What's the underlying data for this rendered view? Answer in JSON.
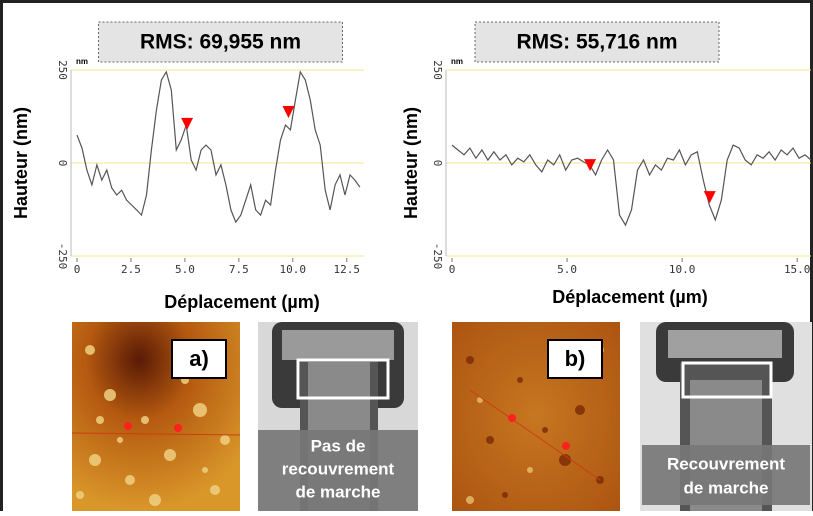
{
  "chart_data": [
    {
      "type": "line",
      "title": "RMS: 69,955 nm",
      "y_unit": "nm",
      "xlabel": "Déplacement (µm)",
      "ylabel": "Hauteur (nm)",
      "xlim": [
        0,
        13.3
      ],
      "ylim": [
        -250,
        250
      ],
      "xticks": [
        0,
        2.5,
        {
          "value": 5,
          "label": "5.0"
        },
        7.5,
        {
          "value": 10,
          "label": "10.0"
        },
        12.5
      ],
      "yticks": [
        -250,
        0,
        250
      ],
      "grid": true,
      "color": "#555555",
      "x": [
        0,
        0.23,
        0.46,
        0.69,
        0.92,
        1.15,
        1.38,
        1.61,
        1.84,
        2.07,
        2.3,
        2.53,
        2.76,
        2.99,
        3.22,
        3.45,
        3.68,
        3.91,
        4.14,
        4.37,
        4.6,
        4.83,
        5.06,
        5.29,
        5.52,
        5.75,
        5.98,
        6.21,
        6.44,
        6.67,
        6.9,
        7.13,
        7.36,
        7.59,
        7.82,
        8.05,
        8.28,
        8.51,
        8.74,
        8.97,
        9.2,
        9.43,
        9.66,
        9.89,
        10.12,
        10.35,
        10.58,
        10.81,
        11.04,
        11.27,
        11.5,
        11.73,
        11.96,
        12.19,
        12.42,
        12.65,
        12.88,
        13.11
      ],
      "values": [
        75,
        40,
        -19,
        -59,
        -5,
        -46,
        -19,
        -67,
        -86,
        -73,
        -100,
        -113,
        -126,
        -140,
        -86,
        35,
        142,
        223,
        245,
        196,
        35,
        62,
        102,
        8,
        -19,
        35,
        48,
        35,
        -32,
        -5,
        -59,
        -126,
        -159,
        -140,
        -100,
        -59,
        -126,
        -140,
        -100,
        -113,
        -19,
        62,
        102,
        89,
        169,
        245,
        223,
        169,
        89,
        48,
        -73,
        -126,
        -59,
        -32,
        -86,
        -32,
        -46,
        -65
      ],
      "markers": {
        "x": [
          5.1,
          9.8
        ],
        "values": [
          89,
          121
        ],
        "color": "#ff0000"
      }
    },
    {
      "type": "line",
      "title": "RMS: 55,716 nm",
      "y_unit": "nm",
      "xlabel": "Déplacement (µm)",
      "ylabel": "Hauteur (nm)",
      "xlim": [
        0,
        15.6
      ],
      "ylim": [
        -250,
        250
      ],
      "xticks": [
        0,
        {
          "value": 5,
          "label": "5.0"
        },
        {
          "value": 10,
          "label": "10.0"
        },
        {
          "value": 15,
          "label": "15.0"
        }
      ],
      "yticks": [
        -250,
        0,
        250
      ],
      "grid": true,
      "color": "#555555",
      "x": [
        0,
        0.26,
        0.52,
        0.78,
        1.04,
        1.3,
        1.56,
        1.82,
        2.08,
        2.34,
        2.6,
        2.86,
        3.12,
        3.38,
        3.64,
        3.9,
        4.16,
        4.42,
        4.68,
        4.94,
        5.2,
        5.46,
        5.72,
        5.98,
        6.24,
        6.5,
        6.76,
        7.02,
        7.28,
        7.54,
        7.8,
        8.06,
        8.32,
        8.58,
        8.84,
        9.1,
        9.36,
        9.62,
        9.88,
        10.14,
        10.4,
        10.66,
        10.92,
        11.18,
        11.44,
        11.7,
        11.96,
        12.22,
        12.48,
        12.74,
        13.0,
        13.26,
        13.52,
        13.78,
        14.04,
        14.3,
        14.56,
        14.82,
        15.08,
        15.34,
        15.6
      ],
      "values": [
        48,
        35,
        22,
        40,
        13,
        35,
        8,
        30,
        8,
        22,
        -5,
        13,
        3,
        22,
        -5,
        -24,
        8,
        -5,
        22,
        -19,
        8,
        13,
        3,
        -5,
        -32,
        8,
        35,
        8,
        -140,
        -167,
        -126,
        -19,
        8,
        -32,
        -5,
        -19,
        13,
        8,
        35,
        -5,
        22,
        30,
        -46,
        -113,
        -153,
        -100,
        8,
        48,
        40,
        8,
        -5,
        22,
        13,
        30,
        8,
        35,
        22,
        40,
        13,
        22,
        8
      ],
      "markers": {
        "x": [
          6.0,
          11.2
        ],
        "values": [
          -22,
          -108
        ],
        "color": "#ff0000"
      }
    }
  ],
  "panels": [
    {
      "label": "a)",
      "caption": [
        "Pas de",
        "recouvrement",
        "de marche"
      ]
    },
    {
      "label": "b)",
      "caption": [
        "Recouvrement",
        "de marche"
      ]
    }
  ]
}
